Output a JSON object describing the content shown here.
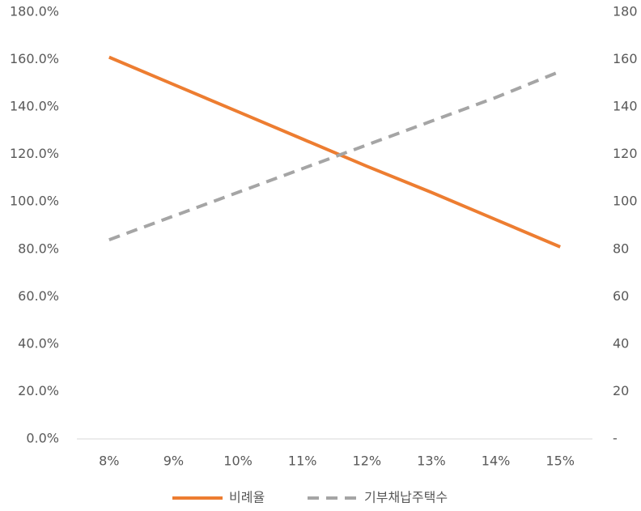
{
  "chart_data": {
    "type": "line",
    "categories": [
      "8%",
      "9%",
      "10%",
      "11%",
      "12%",
      "13%",
      "14%",
      "15%"
    ],
    "series": [
      {
        "name": "비례율",
        "color": "#ed7d31",
        "dash": false,
        "values": [
          161,
          149.5,
          138,
          126.5,
          115,
          104,
          92.5,
          81
        ]
      },
      {
        "name": "기부채납주택수",
        "color": "#a5a5a5",
        "dash": true,
        "axis": "y2",
        "values": [
          84,
          94,
          104,
          114,
          124,
          134,
          144,
          155
        ]
      }
    ],
    "ylim": [
      0,
      180
    ],
    "yticks": [
      {
        "value": 0,
        "label": "0.0%"
      },
      {
        "value": 20,
        "label": "20.0%"
      },
      {
        "value": 40,
        "label": "40.0%"
      },
      {
        "value": 60,
        "label": "60.0%"
      },
      {
        "value": 80,
        "label": "80.0%"
      },
      {
        "value": 100,
        "label": "100.0%"
      },
      {
        "value": 120,
        "label": "120.0%"
      },
      {
        "value": 140,
        "label": "140.0%"
      },
      {
        "value": 160,
        "label": "160.0%"
      },
      {
        "value": 180,
        "label": "180.0%"
      }
    ],
    "y2lim": [
      0,
      180
    ],
    "y2ticks": [
      {
        "value": 0,
        "label": "-"
      },
      20,
      40,
      60,
      80,
      100,
      120,
      140,
      160,
      180
    ],
    "grid": false,
    "legend": "bottom"
  }
}
